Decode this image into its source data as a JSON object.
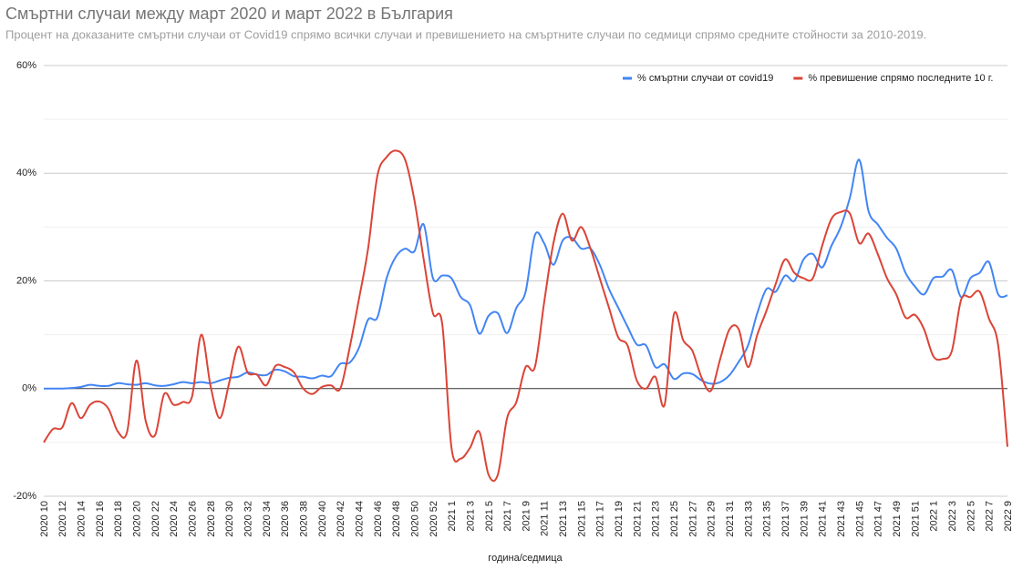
{
  "chart_data": {
    "type": "line",
    "title": "Смъртни случаи между март 2020 и март 2022 в България",
    "subtitle": "Процент на доказаните смъртни случаи от Covid19 спрямо всички случаи и превишението на смъртните случаи по седмици спрямо средните стойности за 2010-2019.",
    "x_label": "година/седмица",
    "categories": [
      "2020 10",
      null,
      "2020 12",
      null,
      "2020 14",
      null,
      "2020 16",
      null,
      "2020 18",
      null,
      "2020 20",
      null,
      "2020 22",
      null,
      "2020 24",
      null,
      "2020 26",
      null,
      "2020 28",
      null,
      "2020 30",
      null,
      "2020 32",
      null,
      "2020 34",
      null,
      "2020 36",
      null,
      "2020 38",
      null,
      "2020 40",
      null,
      "2020 42",
      null,
      "2020 44",
      null,
      "2020 46",
      null,
      "2020 48",
      null,
      "2020 50",
      null,
      "2020 52",
      null,
      "2021 1",
      null,
      "2021 3",
      null,
      "2021 5",
      null,
      "2021 7",
      null,
      "2021 9",
      null,
      "2021 11",
      null,
      "2021 13",
      null,
      "2021 15",
      null,
      "2021 17",
      null,
      "2021 19",
      null,
      "2021 21",
      null,
      "2021 23",
      null,
      "2021 25",
      null,
      "2021 27",
      null,
      "2021 29",
      null,
      "2021 31",
      null,
      "2021 33",
      null,
      "2021 35",
      null,
      "2021 37",
      null,
      "2021 39",
      null,
      "2021 41",
      null,
      "2021 43",
      null,
      "2021 45",
      null,
      "2021 47",
      null,
      "2021 49",
      null,
      "2021 51",
      null,
      "2022 1",
      null,
      "2022 3",
      null,
      "2022 5",
      null,
      "2022 7",
      null,
      "2022 9"
    ],
    "series": [
      {
        "name": "% смъртни случаи от covid19",
        "color": "#4285f4",
        "values": [
          0,
          0,
          0,
          0.1,
          0.3,
          0.7,
          0.5,
          0.5,
          1.0,
          0.8,
          0.7,
          1.0,
          0.6,
          0.5,
          0.8,
          1.2,
          1.0,
          1.2,
          1.0,
          1.5,
          2.0,
          2.2,
          3.0,
          2.6,
          2.5,
          3.5,
          3.2,
          2.3,
          2.2,
          1.9,
          2.4,
          2.3,
          4.6,
          4.8,
          7.5,
          12.8,
          13.2,
          20.5,
          24.5,
          26,
          25.5,
          30.5,
          20.5,
          21,
          20.5,
          17,
          15.5,
          10.2,
          13.5,
          14,
          10.3,
          15,
          18,
          28.5,
          27,
          23,
          27.5,
          28,
          26,
          26,
          23,
          18.5,
          15,
          11.5,
          8.2,
          8,
          4,
          4.5,
          1.8,
          2.8,
          2.7,
          1.5,
          0.9,
          1.2,
          2.5,
          5,
          8,
          14,
          18.5,
          18,
          21,
          20,
          24,
          25,
          22.5,
          26.5,
          30,
          35.5,
          42.5,
          33,
          30.5,
          28,
          26,
          21.5,
          19,
          17.5,
          20.5,
          20.8,
          22,
          17,
          20.5,
          21.5,
          23.5,
          17.5,
          17.3
        ]
      },
      {
        "name": "% превишение спрямо последните 10 г.",
        "color": "#db4437",
        "values": [
          -10,
          -7.5,
          -7.2,
          -2.7,
          -5.5,
          -3,
          -2.4,
          -3.8,
          -8,
          -8,
          5.2,
          -6,
          -8.7,
          -1,
          -3,
          -2.5,
          -1.5,
          10,
          0.5,
          -5.5,
          1,
          7.8,
          3,
          2.6,
          0.6,
          4.2,
          4,
          3,
          0,
          -1,
          0.3,
          0.6,
          0,
          7.5,
          16.5,
          26,
          39.5,
          43,
          44.2,
          42.5,
          35,
          24,
          14,
          12,
          -11,
          -13,
          -11,
          -8,
          -16,
          -16,
          -5.5,
          -2.5,
          4,
          4,
          16,
          27,
          32.5,
          27.5,
          30,
          26,
          20.5,
          15,
          9.5,
          8,
          1.5,
          0,
          2.2,
          -3,
          13.8,
          9,
          7,
          2,
          -0.4,
          5.5,
          11,
          11,
          4,
          10,
          14.5,
          19.5,
          24,
          21.5,
          20.5,
          20.5,
          26.5,
          31.5,
          32.8,
          32.5,
          27,
          28.8,
          25,
          20.5,
          17.5,
          13.2,
          13.7,
          11,
          6,
          5.5,
          7,
          16.5,
          17,
          18,
          13,
          8,
          -10.8
        ]
      }
    ],
    "ylim": [
      -20,
      60
    ],
    "yticks": [
      {
        "value": -20,
        "label": "-20%"
      },
      {
        "value": 0,
        "label": "0%"
      },
      {
        "value": 20,
        "label": "20%"
      },
      {
        "value": 40,
        "label": "40%"
      },
      {
        "value": 60,
        "label": "60%"
      }
    ],
    "minor_yticks": [
      -10,
      10,
      30,
      50
    ],
    "grid": true,
    "legend": "top-right"
  }
}
